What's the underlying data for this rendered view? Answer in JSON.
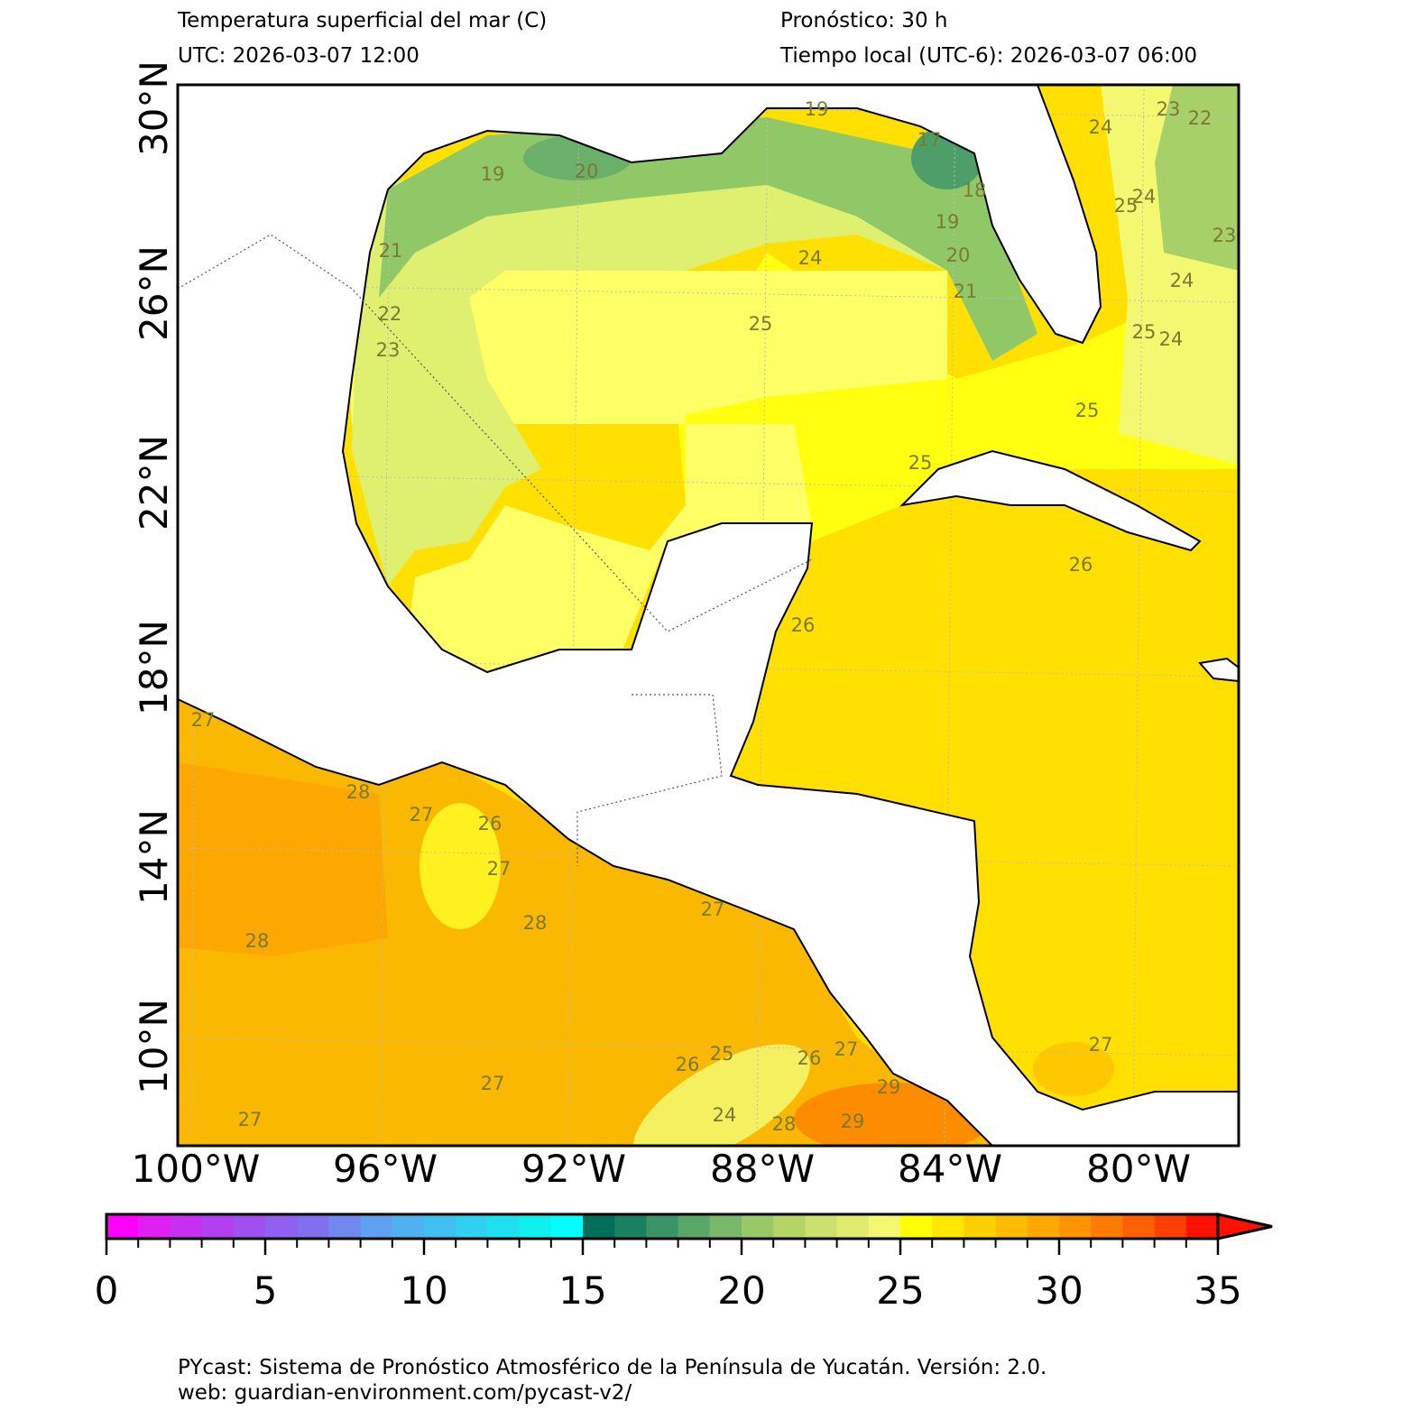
{
  "header": {
    "title": "Temperatura superficial del mar (C)",
    "utc": "UTC:  2026-03-07 12:00",
    "forecast": "Pronóstico: 30 h",
    "local_time": "Tiempo local (UTC-6): 2026-03-07 06:00"
  },
  "map": {
    "lat_labels": [
      "30°N",
      "26°N",
      "22°N",
      "18°N",
      "14°N",
      "10°N"
    ],
    "lon_labels": [
      "100°W",
      "96°W",
      "92°W",
      "88°W",
      "84°W",
      "80°W"
    ],
    "contour_labels": [
      "19",
      "20",
      "19",
      "17",
      "18",
      "19",
      "20",
      "21",
      "21",
      "22",
      "23",
      "24",
      "25",
      "25",
      "25",
      "26",
      "26",
      "27",
      "28",
      "27",
      "26",
      "27",
      "28",
      "28",
      "27",
      "27",
      "26",
      "25",
      "24",
      "28",
      "26",
      "27",
      "29",
      "29",
      "27",
      "27",
      "24",
      "23",
      "22",
      "24",
      "25",
      "23",
      "24",
      "25",
      "24"
    ]
  },
  "colorbar": {
    "range": [
      0,
      35
    ],
    "ticks": [
      0,
      5,
      10,
      15,
      20,
      25,
      30,
      35
    ],
    "colors": [
      "#ff00ff",
      "#e020f0",
      "#c830f0",
      "#b040f0",
      "#a050f0",
      "#9060f0",
      "#8070f0",
      "#7088f0",
      "#60a0f0",
      "#50b0f0",
      "#40c0f0",
      "#30d0f0",
      "#20e0f0",
      "#10f0f0",
      "#00ffff",
      "#006e58",
      "#1a8060",
      "#3a9468",
      "#5aa868",
      "#78b868",
      "#98c868",
      "#b4d468",
      "#cce070",
      "#e0ec70",
      "#f4f870",
      "#ffff00",
      "#ffe800",
      "#ffd000",
      "#ffbc00",
      "#ffa800",
      "#ff9400",
      "#ff7c00",
      "#ff6000",
      "#ff4000",
      "#ff1000"
    ]
  },
  "footer": {
    "line1": "PYcast: Sistema de Pronóstico Atmosférico de la Península de Yucatán. Versión: 2.0.",
    "line2": "web: guardian-environment.com/pycast-v2/"
  }
}
